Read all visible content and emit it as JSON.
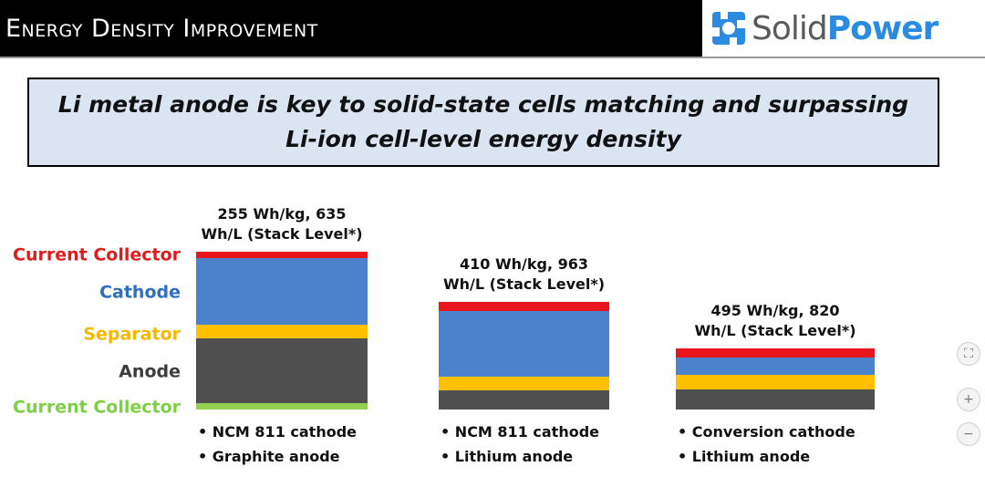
{
  "header": {
    "title": "Energy Density Improvement",
    "logo_solid": "Solid",
    "logo_power": "Power"
  },
  "headline": {
    "line1": "Li metal anode is key to solid-state cells matching and surpassing",
    "line2": "Li-ion cell-level energy density"
  },
  "layer_labels": [
    {
      "key": "current_collector_top",
      "text": "Current Collector",
      "color": "#e01c1c"
    },
    {
      "key": "cathode",
      "text": "Cathode",
      "color": "#2f6fc0"
    },
    {
      "key": "separator",
      "text": "Separator",
      "color": "#f5b800"
    },
    {
      "key": "anode",
      "text": "Anode",
      "color": "#3c3c3c"
    },
    {
      "key": "current_collector_bottom",
      "text": "Current Collector",
      "color": "#7bd043"
    }
  ],
  "colors": {
    "current_collector": "#e8161c",
    "cathode": "#4a82cc",
    "separator": "#ffc000",
    "anode": "#505050",
    "copper_collector": "#92d050"
  },
  "chart_data": {
    "type": "bar",
    "stacking": "stacked",
    "title": "",
    "categories": [
      "255 Wh/kg, 635 Wh/L (Stack Level*)",
      "410 Wh/kg, 963 Wh/L (Stack Level*)",
      "495 Wh/kg, 820 Wh/L (Stack Level*)"
    ],
    "series": [
      {
        "name": "Current Collector",
        "values": [
          0.05,
          0.05,
          0.05
        ]
      },
      {
        "name": "Cathode",
        "values": [
          0.74,
          0.58,
          0.15
        ]
      },
      {
        "name": "Separator",
        "values": [
          0.12,
          0.12,
          0.12
        ]
      },
      {
        "name": "Anode",
        "values": [
          0.53,
          0.16,
          0.16
        ]
      },
      {
        "name": "Current Collector",
        "values": [
          0.05,
          0.0,
          0.0
        ]
      }
    ],
    "stacks": [
      {
        "label_line1": "255 Wh/kg, 635",
        "label_line2": "Wh/L (Stack Level*)",
        "layers": [
          0.07,
          0.73,
          0.15,
          0.71,
          0.07
        ],
        "notes": [
          "• NCM 811 cathode",
          "• Graphite anode"
        ]
      },
      {
        "label_line1": "410 Wh/kg, 963",
        "label_line2": "Wh/L (Stack Level*)",
        "layers": [
          0.1,
          0.72,
          0.15,
          0.21,
          0.0
        ],
        "notes": [
          "• NCM 811 cathode",
          "• Lithium anode"
        ]
      },
      {
        "label_line1": "495 Wh/kg, 820",
        "label_line2": "Wh/L (Stack Level*)",
        "layers": [
          0.1,
          0.19,
          0.16,
          0.22,
          0.0
        ],
        "notes": [
          "• Conversion cathode",
          "• Lithium anode"
        ]
      }
    ]
  },
  "controls": [
    {
      "name": "fit-icon",
      "glyph": "⛶"
    },
    {
      "name": "zoom-in-icon",
      "glyph": "+"
    },
    {
      "name": "zoom-out-icon",
      "glyph": "−"
    }
  ]
}
